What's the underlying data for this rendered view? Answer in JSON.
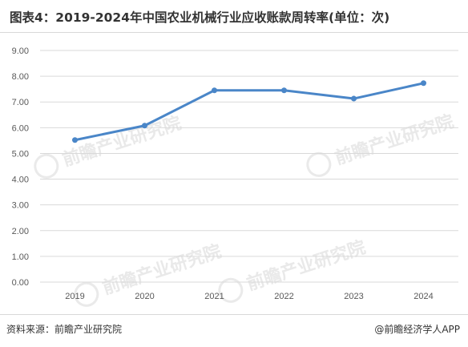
{
  "header": {
    "title": "图表4：2019-2024年中国农业机械行业应收账款周转率(单位：次)"
  },
  "footer": {
    "source": "资料来源：前瞻产业研究院",
    "credit": "@前瞻经济学人APP"
  },
  "watermark": {
    "text": "前瞻产业研究院"
  },
  "colors": {
    "line": "#4a86c8",
    "grid": "#d9d9d9",
    "tick_text": "#595959"
  },
  "chart_data": {
    "type": "line",
    "title": "",
    "xlabel": "",
    "ylabel": "",
    "categories": [
      "2019",
      "2020",
      "2021",
      "2022",
      "2023",
      "2024"
    ],
    "values": [
      5.52,
      6.08,
      7.45,
      7.45,
      7.13,
      7.73
    ],
    "ylim": [
      0,
      9
    ],
    "yticks": [
      "0.00",
      "1.00",
      "2.00",
      "3.00",
      "4.00",
      "5.00",
      "6.00",
      "7.00",
      "8.00",
      "9.00"
    ],
    "grid": true,
    "legend": "none"
  }
}
